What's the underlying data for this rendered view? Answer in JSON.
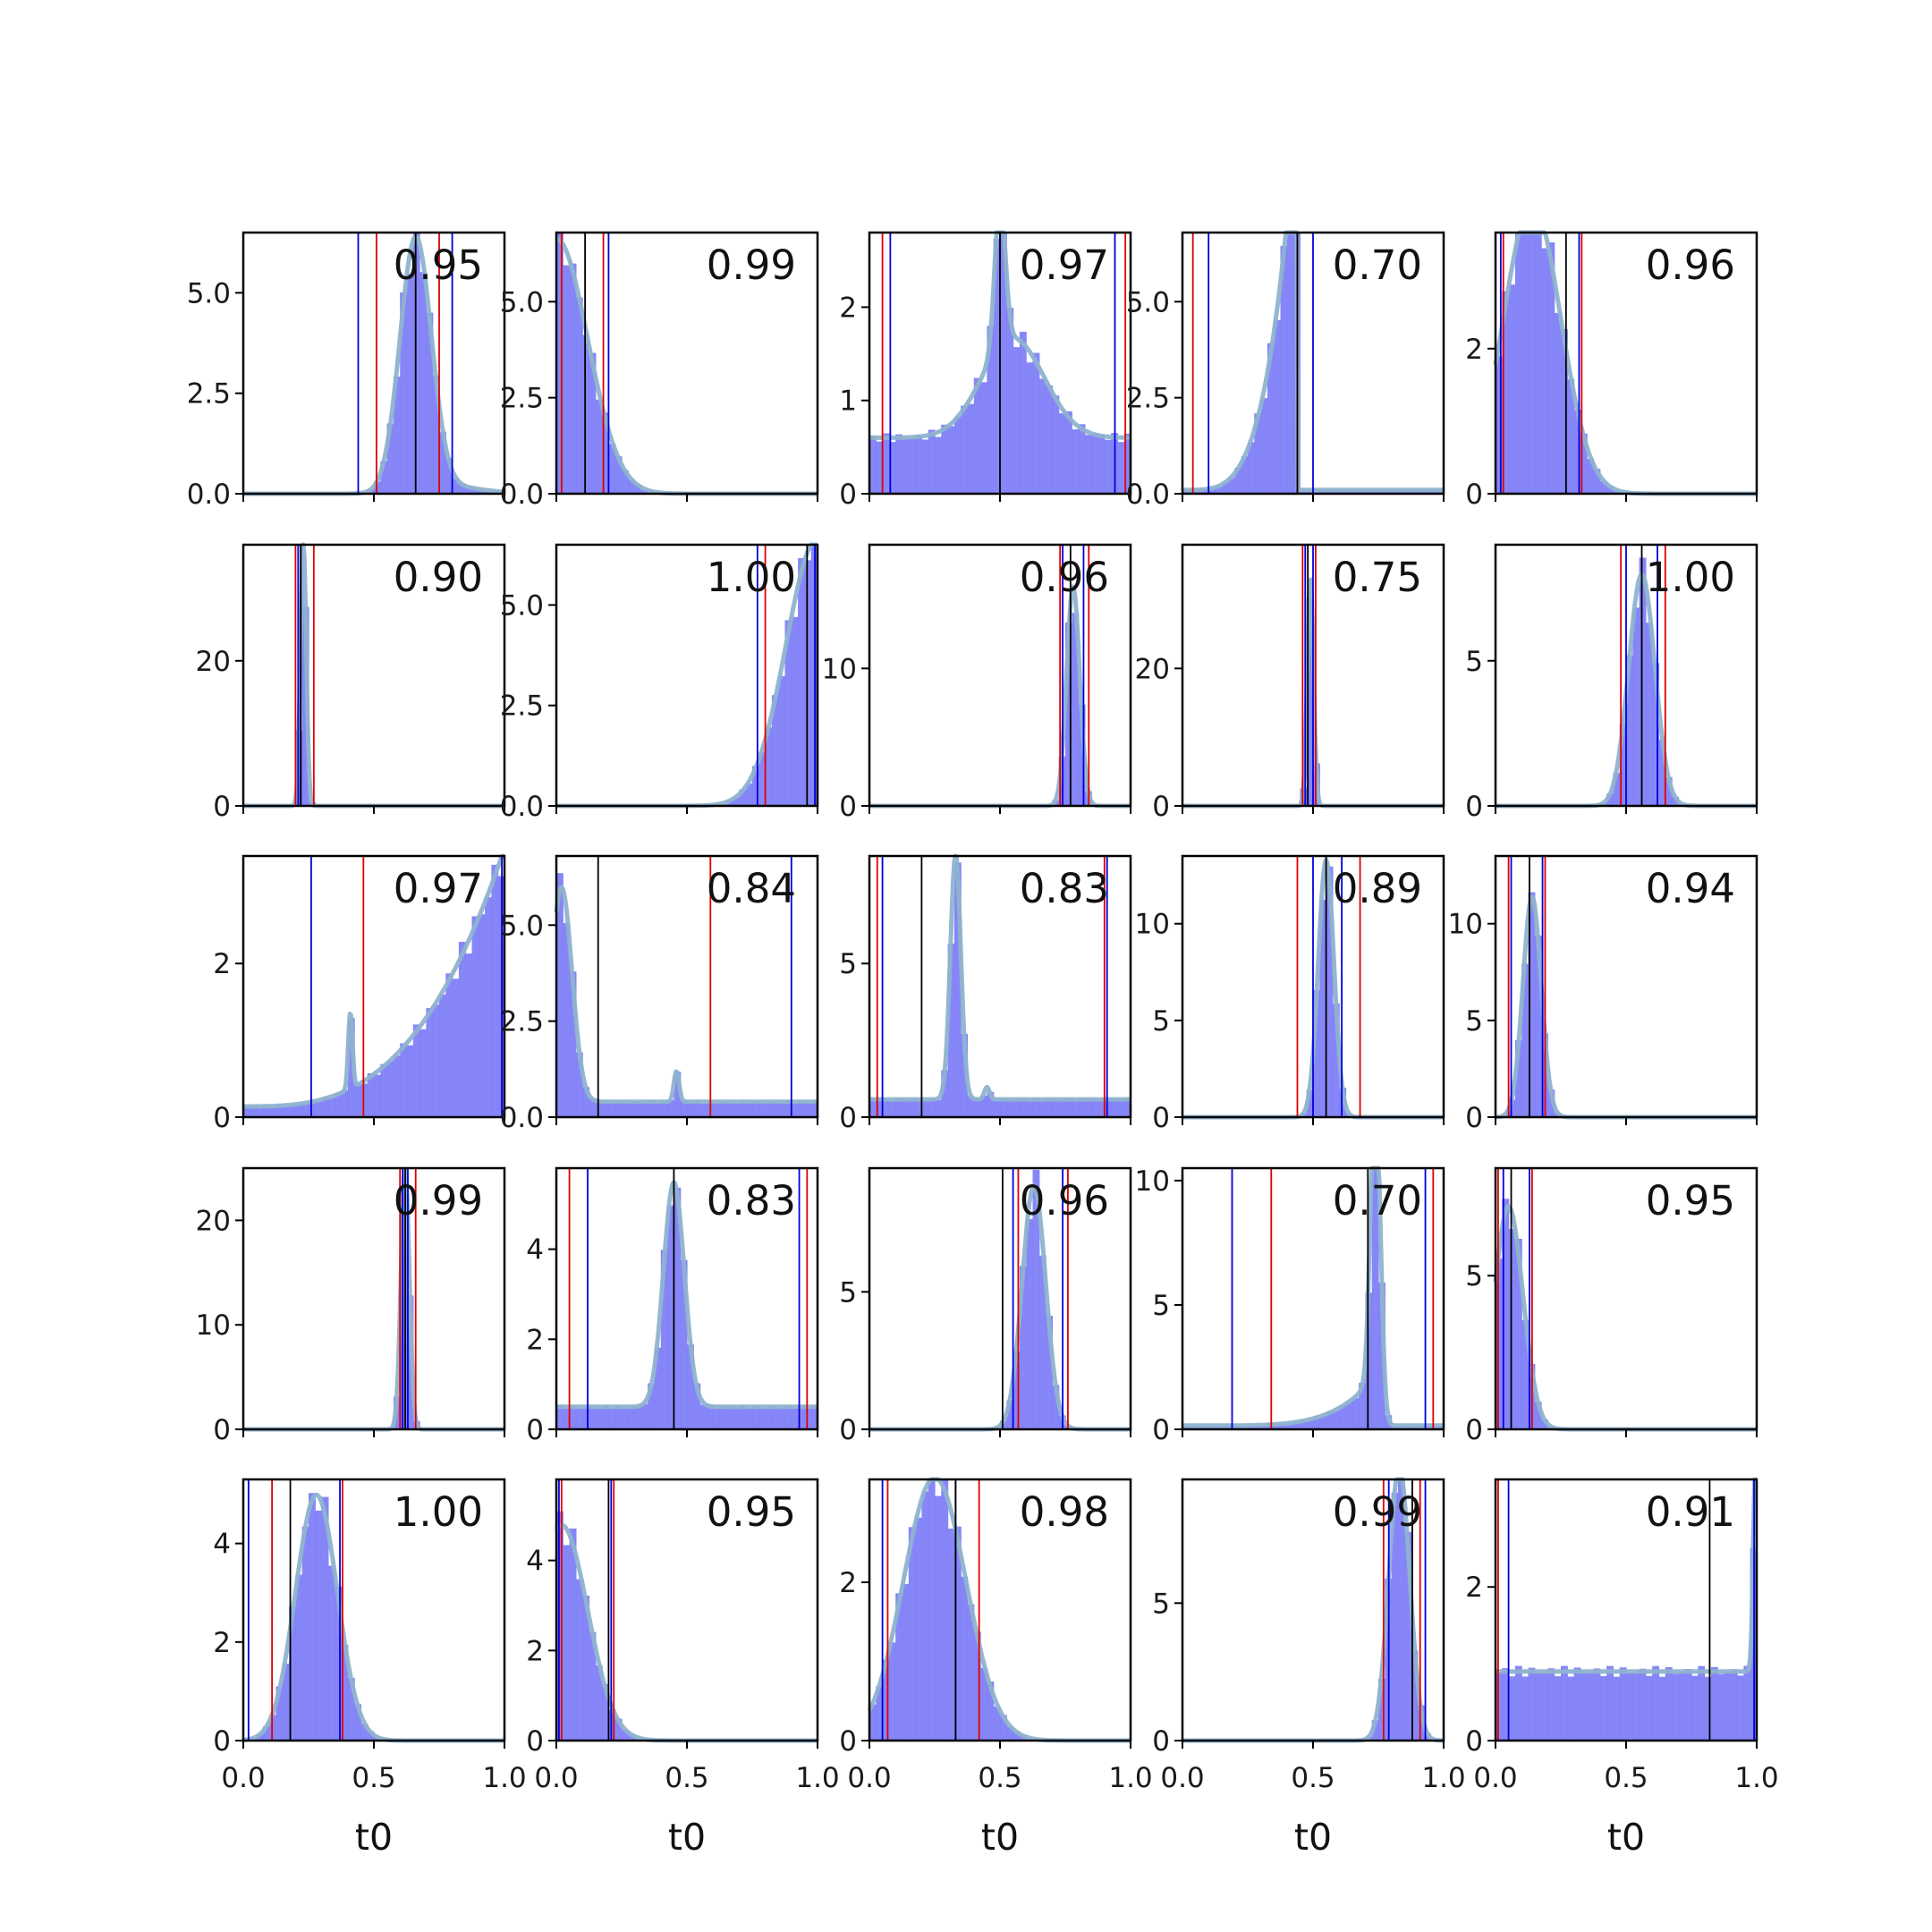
{
  "chart_data": {
    "type": "grid-of-histograms",
    "rows": 5,
    "cols": 5,
    "xlabel": "t0",
    "xlim": [
      0,
      1
    ],
    "xticks": [
      "0.0",
      "0.5",
      "1.0"
    ],
    "colors": {
      "bars": "#8080f8",
      "density": "#8fb3cf",
      "red_lines": "#e00000",
      "blue_lines": "#0000e0",
      "median_line": "#000000"
    },
    "panels": [
      {
        "score": "0.95",
        "ymax": 6.5,
        "yticks": [
          0,
          2.5,
          5.0
        ],
        "ytick_labels": [
          "0.0",
          "2.5",
          "5.0"
        ],
        "comps": [
          {
            "type": "g",
            "mu": 0.66,
            "s": 0.06,
            "w": 0.95
          },
          {
            "type": "g",
            "mu": 0.8,
            "s": 0.12,
            "w": 0.05
          }
        ],
        "red": [
          0.51,
          0.75
        ],
        "blue": [
          0.44,
          0.8
        ],
        "black": 0.66
      },
      {
        "score": "0.99",
        "ymax": 6.8,
        "yticks": [
          0,
          2.5,
          5.0
        ],
        "ytick_labels": [
          "0.0",
          "2.5",
          "5.0"
        ],
        "comps": [
          {
            "type": "g",
            "mu": 0.0,
            "s": 0.12,
            "w": 2
          }
        ],
        "red": [
          0.02,
          0.18
        ],
        "blue": [
          0.0,
          0.2
        ],
        "black": 0.11
      },
      {
        "score": "0.97",
        "ymax": 2.8,
        "yticks": [
          0,
          1,
          2
        ],
        "ytick_labels": [
          "0",
          "1",
          "2"
        ],
        "comps": [
          {
            "type": "u",
            "w": 0.6
          },
          {
            "type": "g",
            "mu": 0.5,
            "s": 0.02,
            "w": 0.08
          },
          {
            "type": "g",
            "mu": 0.55,
            "s": 0.12,
            "w": 0.32
          }
        ],
        "red": [
          0.05,
          0.98
        ],
        "blue": [
          0.08,
          0.94
        ],
        "black": 0.5
      },
      {
        "score": "0.70",
        "ymax": 6.8,
        "yticks": [
          0,
          2.5,
          5.0
        ],
        "ytick_labels": [
          "0.0",
          "2.5",
          "5.0"
        ],
        "comps": [
          {
            "type": "ramp",
            "lo": 0.0,
            "hi": 0.44,
            "p": 4,
            "w": 0.9
          },
          {
            "type": "u",
            "w": 0.1
          }
        ],
        "red": [
          0.04,
          0.44
        ],
        "blue": [
          0.1,
          0.5
        ],
        "black": 0.44
      },
      {
        "score": "0.96",
        "ymax": 3.6,
        "yticks": [
          0,
          2
        ],
        "ytick_labels": [
          "0",
          "2"
        ],
        "comps": [
          {
            "type": "g",
            "mu": 0.14,
            "s": 0.11,
            "w": 1.1
          }
        ],
        "red": [
          0.03,
          0.33
        ],
        "blue": [
          0.02,
          0.32
        ],
        "black": 0.27
      },
      {
        "score": "0.90",
        "ymax": 36,
        "yticks": [
          0,
          20
        ],
        "ytick_labels": [
          "0",
          "20"
        ],
        "comps": [
          {
            "type": "g",
            "mu": 0.23,
            "s": 0.011,
            "w": 1
          }
        ],
        "red": [
          0.2,
          0.27
        ],
        "blue": [
          0.21,
          0.22
        ],
        "black": 0.22
      },
      {
        "score": "1.00",
        "ymax": 6.5,
        "yticks": [
          0,
          2.5,
          5.0
        ],
        "ytick_labels": [
          "0.0",
          "2.5",
          "5.0"
        ],
        "comps": [
          {
            "type": "g",
            "mu": 1.0,
            "s": 0.12,
            "w": 2
          }
        ],
        "red": [
          0.8,
          1.0
        ],
        "blue": [
          0.77,
          0.99
        ],
        "black": 0.96
      },
      {
        "score": "0.96",
        "ymax": 19,
        "yticks": [
          0,
          10
        ],
        "ytick_labels": [
          "0",
          "10"
        ],
        "comps": [
          {
            "type": "g",
            "mu": 0.78,
            "s": 0.025,
            "w": 1
          }
        ],
        "red": [
          0.73,
          0.84
        ],
        "blue": [
          0.74,
          0.82
        ],
        "black": 0.77
      },
      {
        "score": "0.75",
        "ymax": 38,
        "yticks": [
          0,
          20
        ],
        "ytick_labels": [
          "0",
          "20"
        ],
        "comps": [
          {
            "type": "g",
            "mu": 0.49,
            "s": 0.012,
            "w": 1
          }
        ],
        "red": [
          0.46,
          0.51
        ],
        "blue": [
          0.47,
          0.5
        ],
        "black": 0.48
      },
      {
        "score": "1.00",
        "ymax": 9.0,
        "yticks": [
          0,
          5
        ],
        "ytick_labels": [
          "0",
          "5"
        ],
        "comps": [
          {
            "type": "g",
            "mu": 0.56,
            "s": 0.05,
            "w": 1
          }
        ],
        "red": [
          0.48,
          0.65
        ],
        "blue": [
          0.5,
          0.62
        ],
        "black": 0.56
      },
      {
        "score": "0.97",
        "ymax": 3.4,
        "yticks": [
          0,
          2
        ],
        "ytick_labels": [
          "0",
          "2"
        ],
        "comps": [
          {
            "type": "ramp",
            "lo": 0.0,
            "hi": 1.0,
            "p": 3,
            "w": 0.84
          },
          {
            "type": "u",
            "w": 0.14
          },
          {
            "type": "g",
            "mu": 0.41,
            "s": 0.008,
            "w": 0.02
          }
        ],
        "red": [
          0.46,
          1.0
        ],
        "blue": [
          0.26,
          0.99
        ],
        "black": 1.0
      },
      {
        "score": "0.84",
        "ymax": 6.8,
        "yticks": [
          0,
          2.5,
          5.0
        ],
        "ytick_labels": [
          "0.0",
          "2.5",
          "5.0"
        ],
        "comps": [
          {
            "type": "u",
            "w": 0.4
          },
          {
            "type": "g",
            "mu": 0.02,
            "s": 0.04,
            "w": 0.56
          },
          {
            "type": "g",
            "mu": 0.46,
            "s": 0.01,
            "w": 0.02
          }
        ],
        "red": [
          0.59,
          0.0
        ],
        "blue": [
          0.9,
          0.0
        ],
        "black": 0.16
      },
      {
        "score": "0.83",
        "ymax": 8.5,
        "yticks": [
          0,
          5
        ],
        "ytick_labels": [
          "0",
          "5"
        ],
        "comps": [
          {
            "type": "u",
            "w": 0.58
          },
          {
            "type": "g",
            "mu": 0.33,
            "s": 0.02,
            "w": 0.4
          },
          {
            "type": "g",
            "mu": 0.45,
            "s": 0.01,
            "w": 0.01
          }
        ],
        "red": [
          0.03,
          0.9
        ],
        "blue": [
          0.05,
          0.91
        ],
        "black": 0.2
      },
      {
        "score": "0.89",
        "ymax": 13.5,
        "yticks": [
          0,
          5,
          10
        ],
        "ytick_labels": [
          "0",
          "5",
          "10"
        ],
        "comps": [
          {
            "type": "g",
            "mu": 0.55,
            "s": 0.03,
            "w": 1
          }
        ],
        "red": [
          0.44,
          0.68
        ],
        "blue": [
          0.5,
          0.61
        ],
        "black": 0.55
      },
      {
        "score": "0.94",
        "ymax": 13.5,
        "yticks": [
          0,
          5,
          10
        ],
        "ytick_labels": [
          "0",
          "5",
          "10"
        ],
        "comps": [
          {
            "type": "g",
            "mu": 0.14,
            "s": 0.035,
            "w": 1
          }
        ],
        "red": [
          0.05,
          0.19
        ],
        "blue": [
          0.06,
          0.18
        ],
        "black": 0.13
      },
      {
        "score": "0.99",
        "ymax": 25,
        "yticks": [
          0,
          10,
          20
        ],
        "ytick_labels": [
          "0",
          "10",
          "20"
        ],
        "comps": [
          {
            "type": "g",
            "mu": 0.62,
            "s": 0.016,
            "w": 1
          }
        ],
        "red": [
          0.6,
          0.66
        ],
        "blue": [
          0.61,
          0.63
        ],
        "black": 0.62
      },
      {
        "score": "0.83",
        "ymax": 5.8,
        "yticks": [
          0,
          2,
          4
        ],
        "ytick_labels": [
          "0",
          "2",
          "4"
        ],
        "comps": [
          {
            "type": "u",
            "w": 0.5
          },
          {
            "type": "g",
            "mu": 0.45,
            "s": 0.04,
            "w": 0.5
          }
        ],
        "red": [
          0.05,
          0.96
        ],
        "blue": [
          0.12,
          0.93
        ],
        "black": 0.45
      },
      {
        "score": "0.96",
        "ymax": 9.5,
        "yticks": [
          0,
          5
        ],
        "ytick_labels": [
          "0",
          "5"
        ],
        "comps": [
          {
            "type": "g",
            "mu": 0.63,
            "s": 0.045,
            "w": 1
          }
        ],
        "red": [
          0.57,
          0.76
        ],
        "blue": [
          0.55,
          0.74
        ],
        "black": 0.51
      },
      {
        "score": "0.70",
        "ymax": 10.5,
        "yticks": [
          0,
          5,
          10
        ],
        "ytick_labels": [
          "0",
          "5",
          "10"
        ],
        "comps": [
          {
            "type": "ramp",
            "lo": 0.0,
            "hi": 0.74,
            "p": 5,
            "w": 0.25
          },
          {
            "type": "u",
            "w": 0.15
          },
          {
            "type": "g",
            "mu": 0.74,
            "s": 0.018,
            "w": 0.6
          }
        ],
        "red": [
          0.34,
          0.96
        ],
        "blue": [
          0.19,
          0.93
        ],
        "black": 0.71
      },
      {
        "score": "0.95",
        "ymax": 8.5,
        "yticks": [
          0,
          5
        ],
        "ytick_labels": [
          "0",
          "5"
        ],
        "comps": [
          {
            "type": "g",
            "mu": 0.05,
            "s": 0.055,
            "w": 1
          }
        ],
        "red": [
          0.01,
          0.14
        ],
        "blue": [
          0.03,
          0.13
        ],
        "black": 0.06
      },
      {
        "score": "1.00",
        "ymax": 5.3,
        "yticks": [
          0,
          2,
          4
        ],
        "ytick_labels": [
          "0",
          "2",
          "4"
        ],
        "comps": [
          {
            "type": "g",
            "mu": 0.28,
            "s": 0.08,
            "w": 1
          }
        ],
        "red": [
          0.11,
          0.38
        ],
        "blue": [
          0.02,
          0.37
        ],
        "black": 0.18
      },
      {
        "score": "0.95",
        "ymax": 5.8,
        "yticks": [
          0,
          2,
          4
        ],
        "ytick_labels": [
          "0",
          "2",
          "4"
        ],
        "comps": [
          {
            "type": "g",
            "mu": 0.02,
            "s": 0.1,
            "w": 1.2
          }
        ],
        "red": [
          0.02,
          0.22
        ],
        "blue": [
          0.01,
          0.21
        ],
        "black": 0.2
      },
      {
        "score": "0.98",
        "ymax": 3.3,
        "yticks": [
          0,
          2
        ],
        "ytick_labels": [
          "0",
          "2"
        ],
        "comps": [
          {
            "type": "g",
            "mu": 0.25,
            "s": 0.12,
            "w": 1
          }
        ],
        "red": [
          0.07,
          0.42
        ],
        "blue": [
          0.05,
          0.33
        ],
        "black": 0.33
      },
      {
        "score": "0.99",
        "ymax": 9.5,
        "yticks": [
          0,
          5
        ],
        "ytick_labels": [
          "0",
          "5"
        ],
        "comps": [
          {
            "type": "g",
            "mu": 0.83,
            "s": 0.04,
            "w": 1
          }
        ],
        "red": [
          0.77,
          0.91
        ],
        "blue": [
          0.79,
          0.93
        ],
        "black": 0.88
      },
      {
        "score": "0.91",
        "ymax": 3.4,
        "yticks": [
          0,
          2
        ],
        "ytick_labels": [
          "0",
          "2"
        ],
        "comps": [
          {
            "type": "u",
            "w": 0.9
          },
          {
            "type": "g",
            "mu": 1.0,
            "s": 0.01,
            "w": 0.1
          }
        ],
        "red": [
          0.01,
          1.0
        ],
        "blue": [
          0.05,
          0.99
        ],
        "black": 0.82
      }
    ]
  }
}
